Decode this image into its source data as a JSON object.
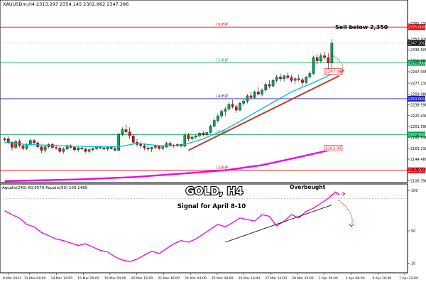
{
  "header": {
    "symbol_line": "XAUUSDm,H4 2313.297 2354.145 2302.862 2347.286"
  },
  "colors": {
    "bull": "#00a651",
    "bear": "#ff0000",
    "ma_short": "#00bcd4",
    "ma_long": "#ee00ee",
    "trendline": "#c0392b",
    "osc_line": "#ee00ee",
    "grid": "#cccccc",
    "label_red": "#ff0000",
    "label_green": "#00a651",
    "label_blue": "#1e1ec8"
  },
  "annotations": {
    "sell_note": "Sell below 2,350",
    "title": "GOLD, H4",
    "subtitle": "Signal for April 8-10",
    "overbought": "Overbought"
  },
  "chart_data": [
    {
      "type": "candlestick",
      "name": "price",
      "ylim": [
        2106,
        2410
      ],
      "y_ticks": [
        "2381.210",
        "2353.920",
        "2335.505",
        "2316.560",
        "2297.095",
        "2277.210",
        "2258.080",
        "2239.590",
        "2220.430",
        "2201.590",
        "2182.530",
        "2163.210",
        "2144.480",
        "2125.820",
        "2106.790"
      ],
      "x_ticks": [
        "8 Mar 2024",
        "13 Mar 04:00",
        "14 Mar 12:00",
        "15 Mar 20:00",
        "19 Mar 04:00",
        "20 Mar 12:00",
        "21 Mar 16:00",
        "24 Mar 04:00",
        "25 Mar 08:00",
        "26 Mar 16:00",
        "27 Mar 12:00",
        "28 Mar 20:00",
        "2 Apr 04:00",
        "3 Apr 08:00",
        "4 Apr 16:00",
        "7 Apr 22:00"
      ],
      "price_levels": [
        {
          "label": "[6/8]P",
          "value": 2375.0,
          "price_tag": "2375.000",
          "color": "#ff0000"
        },
        {
          "label": "[5/8]P",
          "value": 2312.5,
          "price_tag": "2312.500",
          "color": "#00a651"
        },
        {
          "label": "[4/8]P",
          "value": 2250.0,
          "price_tag": "2250.000",
          "color": "#1e1ec8"
        },
        {
          "label": "[3/8]P",
          "value": 2187.5,
          "price_tag": "2187.500",
          "color": "#00a651"
        },
        {
          "label": "[2/8]P",
          "value": 2125.0,
          "price_tag": "2125.000",
          "color": "#ff0000"
        }
      ],
      "ma_tags": [
        {
          "value": 2297.44,
          "text": "2297.44"
        },
        {
          "value": 2163.95,
          "text": "2163.95"
        }
      ],
      "current_price": {
        "value": 2347.286,
        "text": "2347.286"
      },
      "candles": [
        [
          2178,
          2183,
          2175,
          2180
        ],
        [
          2180,
          2184,
          2171,
          2174
        ],
        [
          2174,
          2176,
          2160,
          2165
        ],
        [
          2165,
          2178,
          2162,
          2175
        ],
        [
          2175,
          2179,
          2165,
          2168
        ],
        [
          2168,
          2170,
          2160,
          2163
        ],
        [
          2163,
          2172,
          2160,
          2170
        ],
        [
          2170,
          2180,
          2168,
          2177
        ],
        [
          2177,
          2180,
          2170,
          2173
        ],
        [
          2173,
          2176,
          2163,
          2166
        ],
        [
          2166,
          2168,
          2155,
          2160
        ],
        [
          2160,
          2168,
          2156,
          2166
        ],
        [
          2166,
          2172,
          2163,
          2170
        ],
        [
          2170,
          2173,
          2163,
          2165
        ],
        [
          2165,
          2169,
          2160,
          2164
        ],
        [
          2164,
          2166,
          2155,
          2158
        ],
        [
          2158,
          2165,
          2154,
          2162
        ],
        [
          2162,
          2170,
          2160,
          2168
        ],
        [
          2168,
          2171,
          2163,
          2165
        ],
        [
          2165,
          2167,
          2158,
          2161
        ],
        [
          2161,
          2166,
          2157,
          2164
        ],
        [
          2164,
          2167,
          2160,
          2162
        ],
        [
          2162,
          2164,
          2156,
          2158
        ],
        [
          2158,
          2163,
          2155,
          2161
        ],
        [
          2161,
          2165,
          2158,
          2163
        ],
        [
          2163,
          2168,
          2160,
          2166
        ],
        [
          2166,
          2168,
          2162,
          2164
        ],
        [
          2164,
          2166,
          2159,
          2162
        ],
        [
          2162,
          2166,
          2159,
          2165
        ],
        [
          2165,
          2168,
          2161,
          2163
        ],
        [
          2163,
          2165,
          2158,
          2160
        ],
        [
          2160,
          2190,
          2158,
          2188
        ],
        [
          2188,
          2200,
          2184,
          2196
        ],
        [
          2196,
          2205,
          2190,
          2192
        ],
        [
          2192,
          2200,
          2180,
          2185
        ],
        [
          2185,
          2188,
          2170,
          2174
        ],
        [
          2174,
          2180,
          2166,
          2170
        ],
        [
          2170,
          2175,
          2163,
          2168
        ],
        [
          2168,
          2172,
          2160,
          2164
        ],
        [
          2164,
          2168,
          2158,
          2162
        ],
        [
          2162,
          2166,
          2157,
          2165
        ],
        [
          2165,
          2170,
          2162,
          2167
        ],
        [
          2167,
          2169,
          2160,
          2163
        ],
        [
          2163,
          2167,
          2160,
          2166
        ],
        [
          2166,
          2175,
          2164,
          2172
        ],
        [
          2172,
          2176,
          2166,
          2168
        ],
        [
          2168,
          2171,
          2164,
          2169
        ],
        [
          2169,
          2172,
          2166,
          2170
        ],
        [
          2170,
          2172,
          2165,
          2167
        ],
        [
          2167,
          2190,
          2165,
          2186
        ],
        [
          2186,
          2190,
          2176,
          2180
        ],
        [
          2180,
          2186,
          2177,
          2183
        ],
        [
          2183,
          2188,
          2179,
          2185
        ],
        [
          2185,
          2192,
          2183,
          2190
        ],
        [
          2190,
          2194,
          2184,
          2187
        ],
        [
          2187,
          2192,
          2185,
          2191
        ],
        [
          2191,
          2205,
          2189,
          2202
        ],
        [
          2202,
          2215,
          2200,
          2212
        ],
        [
          2212,
          2224,
          2208,
          2220
        ],
        [
          2220,
          2232,
          2215,
          2228
        ],
        [
          2228,
          2236,
          2220,
          2232
        ],
        [
          2232,
          2245,
          2228,
          2240
        ],
        [
          2240,
          2248,
          2233,
          2236
        ],
        [
          2236,
          2240,
          2225,
          2230
        ],
        [
          2230,
          2245,
          2228,
          2242
        ],
        [
          2242,
          2250,
          2238,
          2246
        ],
        [
          2246,
          2258,
          2242,
          2255
        ],
        [
          2255,
          2262,
          2248,
          2252
        ],
        [
          2252,
          2264,
          2250,
          2262
        ],
        [
          2262,
          2270,
          2256,
          2258
        ],
        [
          2258,
          2268,
          2254,
          2265
        ],
        [
          2265,
          2278,
          2262,
          2275
        ],
        [
          2275,
          2282,
          2268,
          2272
        ],
        [
          2272,
          2285,
          2270,
          2282
        ],
        [
          2282,
          2292,
          2278,
          2288
        ],
        [
          2288,
          2294,
          2280,
          2285
        ],
        [
          2285,
          2292,
          2280,
          2290
        ],
        [
          2290,
          2296,
          2284,
          2287
        ],
        [
          2287,
          2292,
          2278,
          2282
        ],
        [
          2282,
          2288,
          2275,
          2285
        ],
        [
          2285,
          2292,
          2280,
          2283
        ],
        [
          2283,
          2287,
          2272,
          2278
        ],
        [
          2278,
          2290,
          2276,
          2288
        ],
        [
          2288,
          2298,
          2285,
          2294
        ],
        [
          2294,
          2325,
          2292,
          2322
        ],
        [
          2322,
          2328,
          2310,
          2316
        ],
        [
          2316,
          2330,
          2312,
          2325
        ],
        [
          2325,
          2332,
          2318,
          2322
        ],
        [
          2322,
          2330,
          2302,
          2313
        ],
        [
          2313,
          2354,
          2302,
          2347
        ]
      ],
      "ma_short": [
        [
          0,
          2174
        ],
        [
          6,
          2170
        ],
        [
          15,
          2168
        ],
        [
          25,
          2166
        ],
        [
          31,
          2166
        ],
        [
          36,
          2172
        ],
        [
          42,
          2168
        ],
        [
          48,
          2168
        ],
        [
          54,
          2180
        ],
        [
          60,
          2196
        ],
        [
          66,
          2218
        ],
        [
          72,
          2240
        ],
        [
          78,
          2262
        ],
        [
          84,
          2278
        ],
        [
          88,
          2290
        ],
        [
          91,
          2298
        ]
      ],
      "ma_long": [
        [
          0,
          2106
        ],
        [
          20,
          2109
        ],
        [
          35,
          2113
        ],
        [
          50,
          2120
        ],
        [
          60,
          2125
        ],
        [
          70,
          2134
        ],
        [
          80,
          2148
        ],
        [
          91,
          2164
        ]
      ],
      "trendline": [
        [
          50,
          2160
        ],
        [
          91,
          2290
        ]
      ],
      "sell_arrow": [
        [
          88,
          2327
        ],
        [
          91,
          2297
        ]
      ]
    },
    {
      "type": "line",
      "name": "oscillator",
      "title": "Aqualis(240) 60.6579  Aqualis(50) 100.1489",
      "ylim": [
        0,
        100
      ],
      "y_ticks": [
        "100",
        "50",
        "10"
      ],
      "ref_levels": [
        90
      ],
      "values": [
        [
          0,
          75
        ],
        [
          2,
          70
        ],
        [
          4,
          66
        ],
        [
          6,
          58
        ],
        [
          8,
          55
        ],
        [
          10,
          48
        ],
        [
          12,
          44
        ],
        [
          14,
          40
        ],
        [
          16,
          38
        ],
        [
          18,
          35
        ],
        [
          20,
          32
        ],
        [
          22,
          34
        ],
        [
          24,
          30
        ],
        [
          26,
          26
        ],
        [
          28,
          24
        ],
        [
          30,
          18
        ],
        [
          32,
          14
        ],
        [
          34,
          12
        ],
        [
          36,
          15
        ],
        [
          38,
          20
        ],
        [
          40,
          25
        ],
        [
          42,
          22
        ],
        [
          44,
          28
        ],
        [
          46,
          34
        ],
        [
          48,
          38
        ],
        [
          50,
          36
        ],
        [
          52,
          40
        ],
        [
          54,
          46
        ],
        [
          56,
          52
        ],
        [
          58,
          58
        ],
        [
          60,
          55
        ],
        [
          62,
          60
        ],
        [
          64,
          66
        ],
        [
          66,
          64
        ],
        [
          68,
          62
        ],
        [
          70,
          70
        ],
        [
          72,
          68
        ],
        [
          74,
          56
        ],
        [
          76,
          62
        ],
        [
          78,
          70
        ],
        [
          80,
          66
        ],
        [
          82,
          74
        ],
        [
          84,
          78
        ],
        [
          86,
          84
        ],
        [
          88,
          90
        ],
        [
          90,
          98
        ],
        [
          91,
          95
        ]
      ],
      "support_line": [
        [
          60,
          36
        ],
        [
          89,
          82
        ]
      ],
      "arrow_up": [
        [
          88,
          94
        ],
        [
          91,
          96
        ]
      ],
      "arrow_down": [
        [
          90,
          88
        ],
        [
          92,
          56
        ]
      ]
    }
  ]
}
